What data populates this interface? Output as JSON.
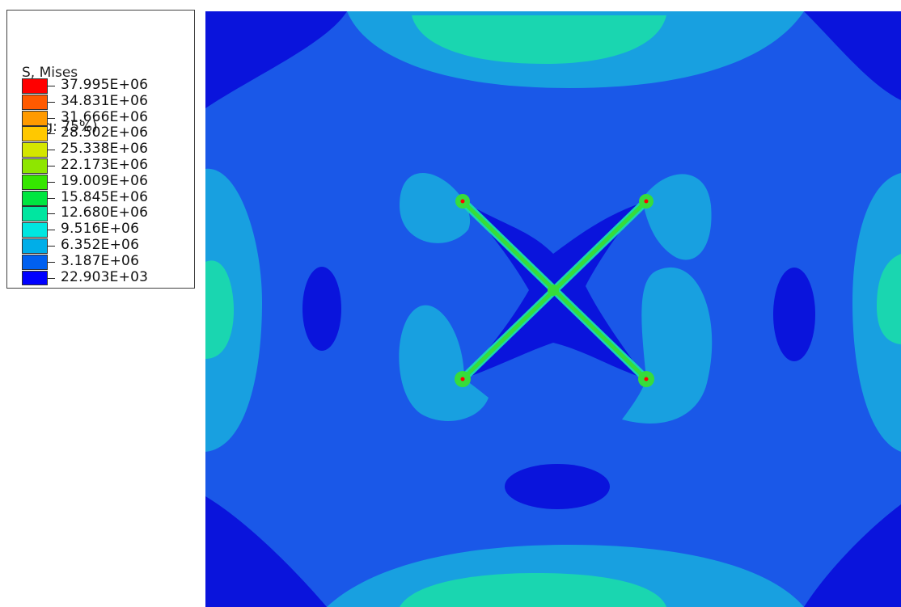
{
  "legend": {
    "title": "S, Mises",
    "subtitle": "(Avg: 75%)",
    "levels": [
      {
        "label": "37.995E+06",
        "color": "#ff0000"
      },
      {
        "label": "34.831E+06",
        "color": "#ff5a00"
      },
      {
        "label": "31.666E+06",
        "color": "#ff9a00"
      },
      {
        "label": "28.502E+06",
        "color": "#ffc800"
      },
      {
        "label": "25.338E+06",
        "color": "#d4e600"
      },
      {
        "label": "22.173E+06",
        "color": "#8ee600"
      },
      {
        "label": "19.009E+06",
        "color": "#35e600"
      },
      {
        "label": "15.845E+06",
        "color": "#00e640"
      },
      {
        "label": "12.680E+06",
        "color": "#00e6a0"
      },
      {
        "label": "9.516E+06",
        "color": "#00e6e0"
      },
      {
        "label": "6.352E+06",
        "color": "#00aee8"
      },
      {
        "label": "3.187E+06",
        "color": "#0060f0"
      },
      {
        "label": "22.903E+03",
        "color": "#0000ff"
      }
    ]
  },
  "contour_colors": {
    "deep_blue": "#0a14dc",
    "mid_blue": "#1a58e8",
    "light_blue": "#18a0e0",
    "cyan_green": "#1ad6b0",
    "green": "#36dd3a"
  }
}
